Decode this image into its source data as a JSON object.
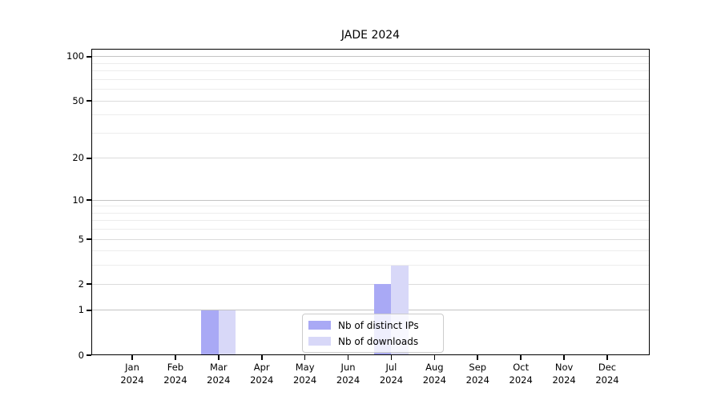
{
  "title": "JADE 2024",
  "chart_data": {
    "type": "bar",
    "title": "JADE 2024",
    "scale": "log(1+y)",
    "categories": [
      "Jan",
      "Feb",
      "Mar",
      "Apr",
      "May",
      "Jun",
      "Jul",
      "Aug",
      "Sep",
      "Oct",
      "Nov",
      "Dec"
    ],
    "year": "2024",
    "series": [
      {
        "name": "Nb of distinct IPs",
        "color": "#a9a9f5",
        "values": [
          0,
          0,
          1,
          0,
          0,
          0,
          2,
          0,
          0,
          0,
          0,
          0
        ]
      },
      {
        "name": "Nb of downloads",
        "color": "#d8d8f8",
        "values": [
          0,
          0,
          1,
          0,
          0,
          0,
          3,
          0,
          0,
          0,
          0,
          0
        ]
      }
    ],
    "y_tick_labels": [
      "0",
      "1",
      "2",
      "5",
      "10",
      "20",
      "50",
      "100"
    ],
    "y_tick_values": [
      0,
      1,
      2,
      5,
      10,
      20,
      50,
      100
    ],
    "decade_gridlines": [
      1,
      10,
      100
    ],
    "mid_gridlines": [
      2,
      5,
      20,
      50
    ],
    "minor_gridlines": [
      3,
      4,
      6,
      7,
      8,
      9,
      30,
      40,
      60,
      70,
      80,
      90
    ],
    "ylim": [
      0,
      113
    ],
    "grid": "horizontal",
    "legend_position": "lower-center-inside"
  },
  "colors": {
    "bar_distinct_ips": "#a9a9f5",
    "bar_downloads": "#d8d8f8",
    "grid_decade": "#c3c3c3",
    "grid_mid": "#dcdcdc",
    "grid_minor": "#ececec",
    "spine": "#000000"
  }
}
